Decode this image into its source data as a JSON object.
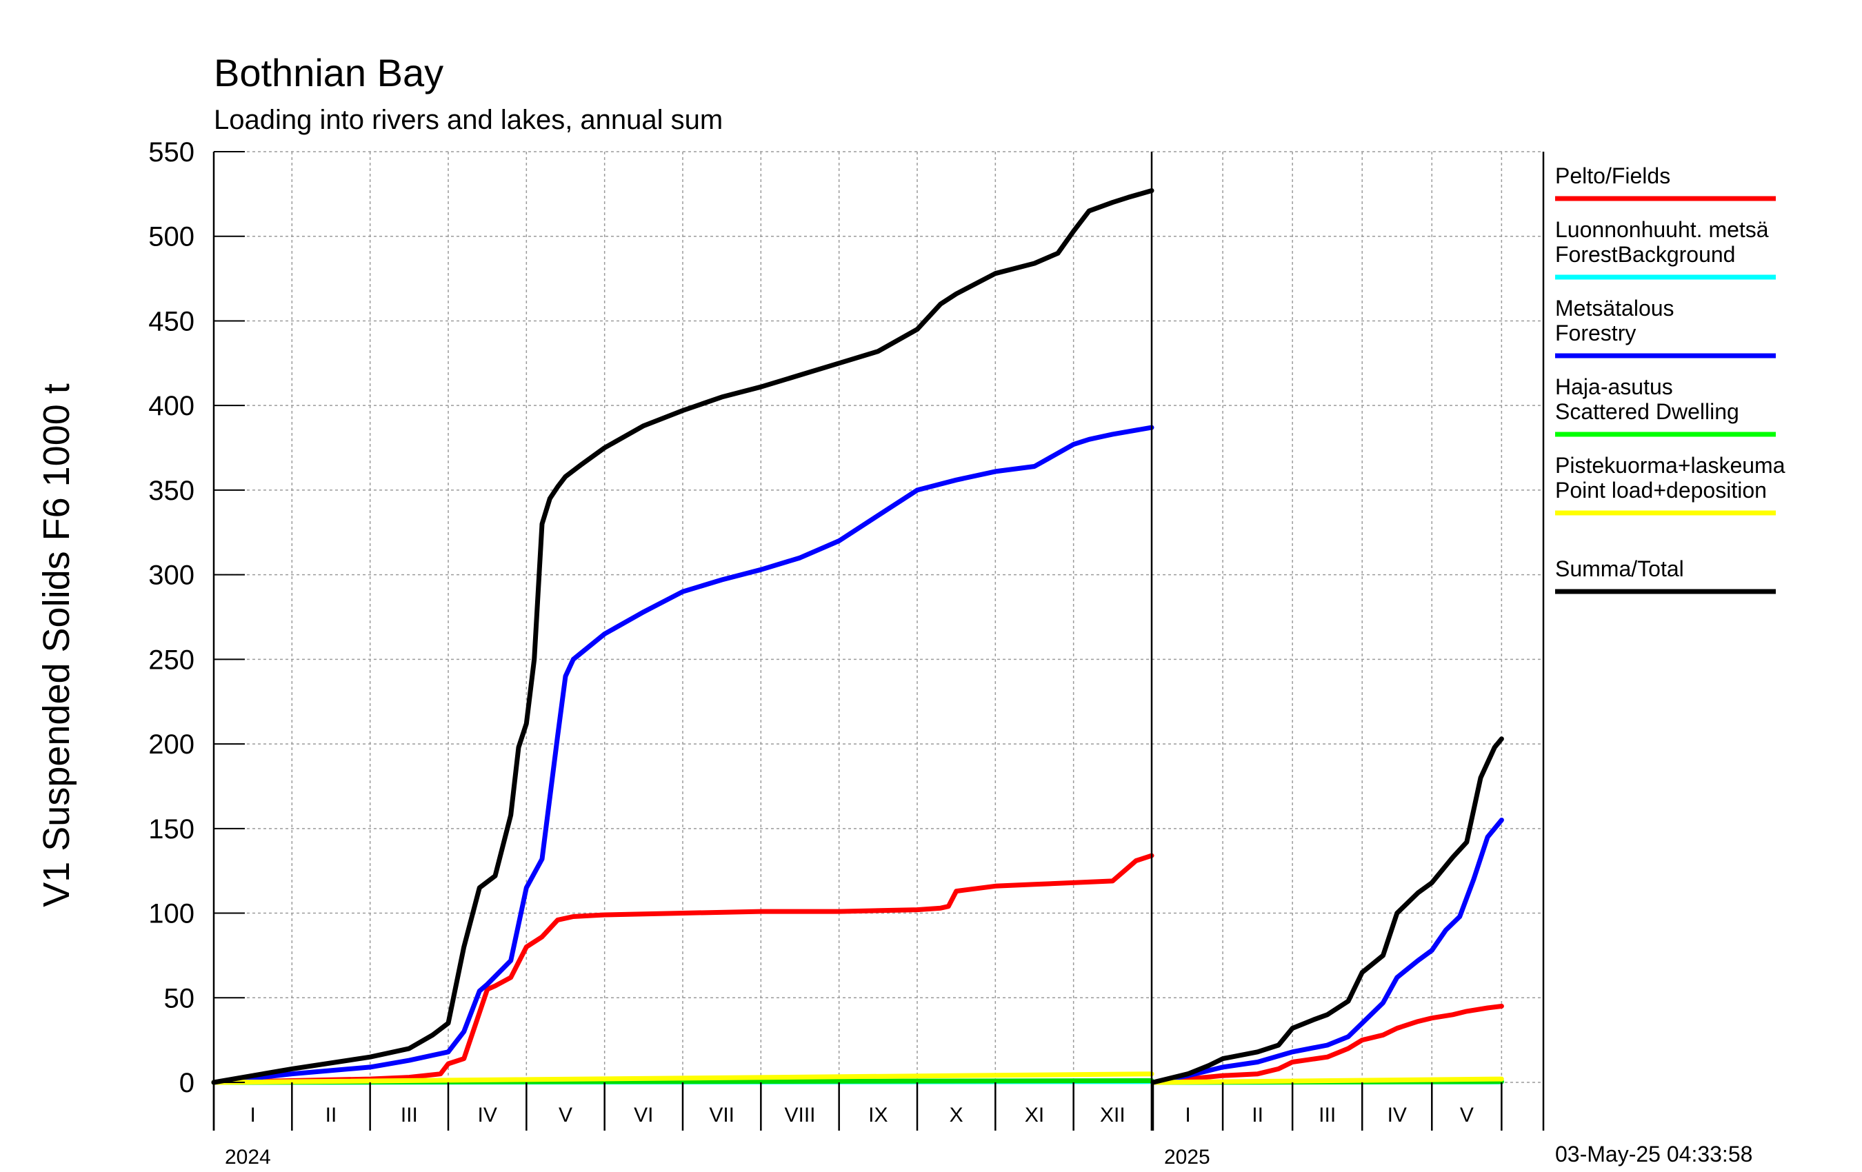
{
  "chart_data": {
    "type": "line",
    "title": "Bothnian Bay",
    "subtitle": "Loading into rivers and lakes, annual sum",
    "ylabel": "V1 Suspended Solids F6 1000 t",
    "ylim": [
      0,
      550
    ],
    "yticks": [
      0,
      50,
      100,
      150,
      200,
      250,
      300,
      350,
      400,
      450,
      500,
      550
    ],
    "grid": true,
    "timestamp": "03-May-25 04:33:58",
    "legend_position": "right",
    "panels": [
      {
        "year_label": "2024",
        "months": [
          "I",
          "II",
          "III",
          "IV",
          "V",
          "VI",
          "VII",
          "VIII",
          "IX",
          "X",
          "XI",
          "XII"
        ],
        "x_unit": "month (0-12)",
        "series": [
          {
            "key": "pelto",
            "color": "#ff0000",
            "x": [
              0,
              1,
              2,
              2.5,
              2.9,
              3.0,
              3.2,
              3.5,
              3.6,
              3.8,
              4.0,
              4.2,
              4.4,
              4.6,
              5,
              6,
              7,
              8,
              9,
              9.3,
              9.4,
              9.5,
              10,
              10.5,
              11.5,
              11.7,
              11.8,
              12
            ],
            "y": [
              0,
              1,
              2,
              3,
              5,
              11,
              14,
              55,
              57,
              62,
              80,
              86,
              96,
              98,
              99,
              100,
              101,
              101,
              102,
              103,
              104,
              113,
              116,
              117,
              119,
              127,
              131,
              134
            ]
          },
          {
            "key": "forest",
            "color": "#00ffff",
            "x": [
              0,
              12
            ],
            "y": [
              0,
              0.5
            ]
          },
          {
            "key": "forestry",
            "color": "#0000ff",
            "x": [
              0,
              1,
              2,
              2.5,
              3,
              3.2,
              3.4,
              3.5,
              3.8,
              4.0,
              4.2,
              4.4,
              4.5,
              4.6,
              5,
              5.5,
              6,
              6.5,
              7,
              7.5,
              8,
              8.5,
              9,
              9.5,
              10,
              10.5,
              11,
              11.2,
              11.5,
              12
            ],
            "y": [
              0,
              5,
              9,
              13,
              18,
              30,
              54,
              58,
              72,
              115,
              132,
              205,
              240,
              250,
              265,
              278,
              290,
              297,
              303,
              310,
              320,
              335,
              350,
              356,
              361,
              364,
              377,
              380,
              383,
              387
            ]
          },
          {
            "key": "dwelling",
            "color": "#00dd00",
            "x": [
              0,
              12
            ],
            "y": [
              0,
              1
            ]
          },
          {
            "key": "point",
            "color": "#ffff00",
            "x": [
              0,
              12
            ],
            "y": [
              0,
              5
            ]
          },
          {
            "key": "total",
            "color": "#000000",
            "x": [
              0,
              1,
              2,
              2.5,
              2.8,
              3.0,
              3.2,
              3.4,
              3.6,
              3.8,
              3.9,
              4.0,
              4.1,
              4.2,
              4.3,
              4.4,
              4.5,
              4.7,
              5,
              5.5,
              6,
              6.5,
              7,
              7.5,
              8,
              8.5,
              9,
              9.3,
              9.5,
              10,
              10.5,
              10.8,
              11,
              11.2,
              11.5,
              11.7,
              12
            ],
            "y": [
              0,
              8,
              15,
              20,
              28,
              35,
              80,
              115,
              122,
              158,
              198,
              212,
              250,
              330,
              345,
              352,
              358,
              365,
              375,
              388,
              397,
              405,
              411,
              418,
              425,
              432,
              445,
              460,
              466,
              478,
              484,
              490,
              503,
              515,
              520,
              523,
              527
            ]
          }
        ]
      },
      {
        "year_label": "2025",
        "months": [
          "I",
          "II",
          "III",
          "IV",
          "V"
        ],
        "x_unit": "month (0-5)",
        "series": [
          {
            "key": "pelto",
            "color": "#ff0000",
            "x": [
              0,
              0.5,
              1,
              1.5,
              1.8,
              2,
              2.5,
              2.8,
              3.0,
              3.3,
              3.5,
              3.8,
              4.0,
              4.3,
              4.5,
              4.8,
              5.0
            ],
            "y": [
              0,
              2,
              4,
              5,
              8,
              12,
              15,
              20,
              25,
              28,
              32,
              36,
              38,
              40,
              42,
              44,
              45
            ]
          },
          {
            "key": "forest",
            "color": "#00ffff",
            "x": [
              0,
              5
            ],
            "y": [
              0,
              0.3
            ]
          },
          {
            "key": "forestry",
            "color": "#0000ff",
            "x": [
              0,
              0.5,
              1,
              1.5,
              2,
              2.5,
              2.8,
              3.0,
              3.3,
              3.5,
              3.8,
              4.0,
              4.2,
              4.4,
              4.6,
              4.8,
              5.0
            ],
            "y": [
              0,
              4,
              9,
              12,
              18,
              22,
              27,
              35,
              47,
              62,
              72,
              78,
              90,
              98,
              120,
              145,
              155
            ]
          },
          {
            "key": "dwelling",
            "color": "#00dd00",
            "x": [
              0,
              5
            ],
            "y": [
              0,
              0.5
            ]
          },
          {
            "key": "point",
            "color": "#ffff00",
            "x": [
              0,
              5
            ],
            "y": [
              0,
              2
            ]
          },
          {
            "key": "total",
            "color": "#000000",
            "x": [
              0,
              0.5,
              0.8,
              1,
              1.5,
              1.8,
              2,
              2.3,
              2.5,
              2.8,
              3.0,
              3.3,
              3.5,
              3.8,
              4.0,
              4.3,
              4.5,
              4.7,
              4.9,
              5.0
            ],
            "y": [
              0,
              5,
              10,
              14,
              18,
              22,
              32,
              37,
              40,
              48,
              65,
              75,
              100,
              112,
              118,
              133,
              142,
              180,
              198,
              203
            ]
          }
        ]
      }
    ],
    "legend": [
      {
        "label_lines": [
          "Pelto/Fields"
        ],
        "color": "#ff0000"
      },
      {
        "label_lines": [
          "Luonnonhuuht. metsä",
          "ForestBackground"
        ],
        "color": "#00ffff"
      },
      {
        "label_lines": [
          "Metsätalous",
          "Forestry"
        ],
        "color": "#0000ff"
      },
      {
        "label_lines": [
          "Haja-asutus",
          "Scattered Dwelling"
        ],
        "color": "#00ff00"
      },
      {
        "label_lines": [
          "Pistekuorma+laskeuma",
          "Point load+deposition"
        ],
        "color": "#ffff00"
      },
      {
        "label_lines": [
          "Summa/Total"
        ],
        "color": "#000000"
      }
    ]
  }
}
